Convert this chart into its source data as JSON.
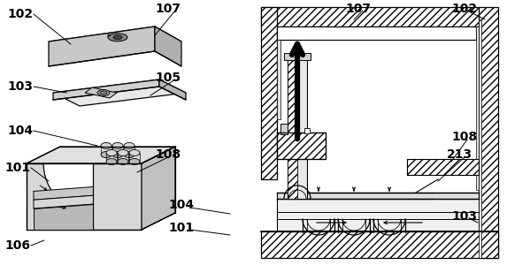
{
  "bg": "#ffffff",
  "lc": "#000000",
  "gray1": "#e8e8e8",
  "gray2": "#d0d0d0",
  "gray3": "#b8b8b8",
  "gray4": "#c8c8c8",
  "hatch_pat": "////",
  "figsize": [
    5.73,
    3.0
  ],
  "dpi": 100
}
